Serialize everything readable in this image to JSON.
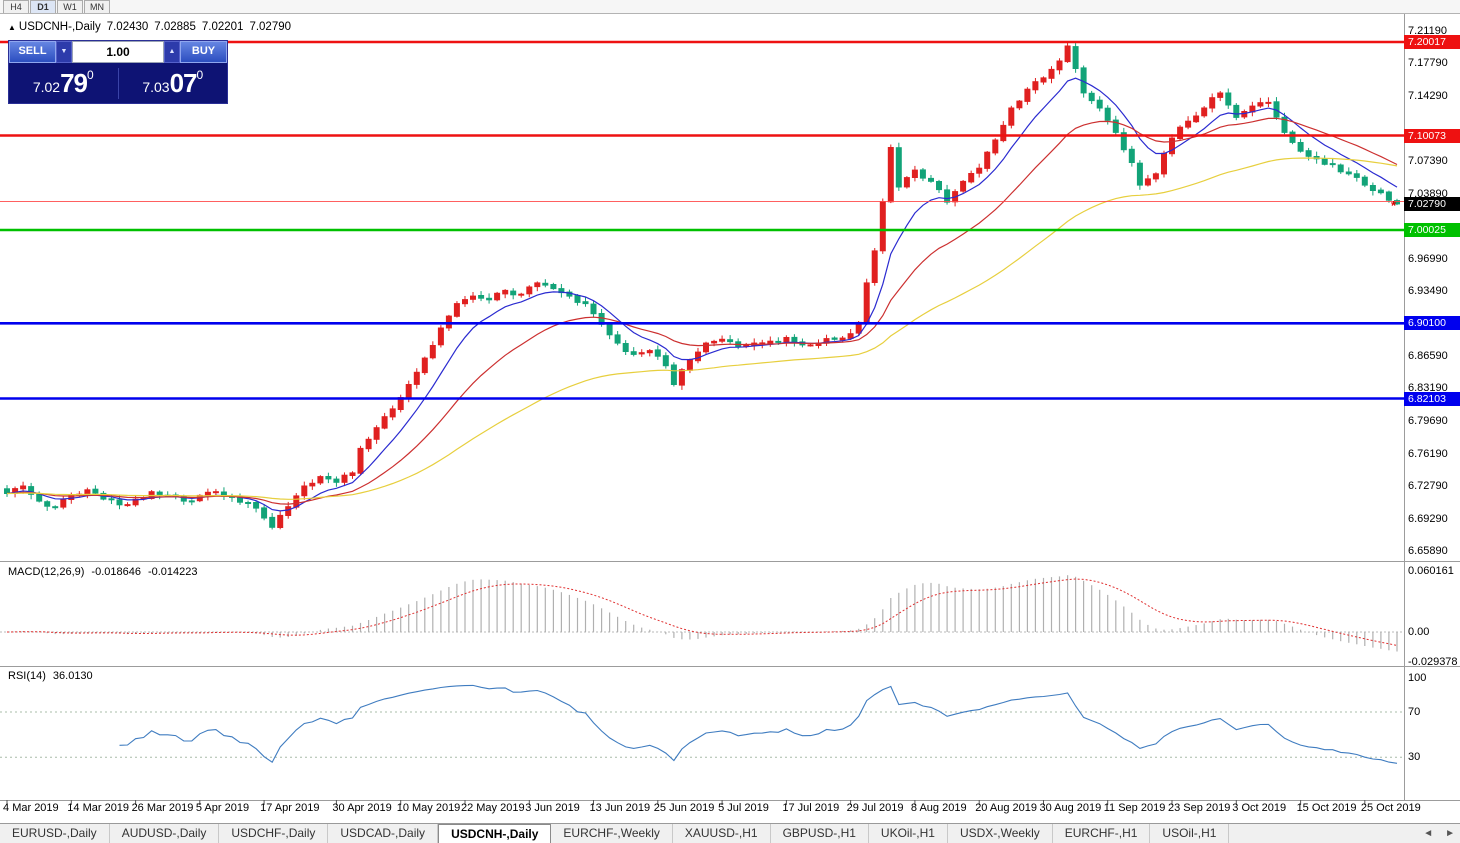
{
  "topbar": {
    "timeframes": [
      "H4",
      "D1",
      "W1",
      "MN"
    ],
    "active_index": 1
  },
  "chart": {
    "header": {
      "arrow": "▲",
      "symbol": "USDCNH-,Daily",
      "open": "7.02430",
      "high": "7.02885",
      "low": "7.02201",
      "close": "7.02790"
    },
    "trade_panel": {
      "sell_label": "SELL",
      "buy_label": "BUY",
      "volume": "1.00",
      "spin_up": "▲",
      "spin_down": "▼",
      "sell_price": {
        "prefix": "7.02",
        "pips": "79",
        "pipette": "0"
      },
      "buy_price": {
        "prefix": "7.03",
        "pips": "07",
        "pipette": "0"
      }
    }
  },
  "chart_data": {
    "type": "candlestick",
    "symbol": "USDCNH-",
    "timeframe": "Daily",
    "ohlc": {
      "open": 7.0243,
      "high": 7.02885,
      "low": 7.02201,
      "close": 7.0279
    },
    "bid": 7.0279,
    "ask": 7.0307,
    "candle_count": 174,
    "candle_colors": {
      "up": "#e02020",
      "down": "#12a378"
    },
    "price_anchors": [
      [
        0,
        6.72
      ],
      [
        2,
        6.728
      ],
      [
        4,
        6.712
      ],
      [
        6,
        6.706
      ],
      [
        8,
        6.718
      ],
      [
        10,
        6.724
      ],
      [
        12,
        6.714
      ],
      [
        14,
        6.708
      ],
      [
        16,
        6.714
      ],
      [
        18,
        6.722
      ],
      [
        20,
        6.718
      ],
      [
        22,
        6.712
      ],
      [
        24,
        6.718
      ],
      [
        26,
        6.722
      ],
      [
        28,
        6.716
      ],
      [
        30,
        6.71
      ],
      [
        32,
        6.694
      ],
      [
        33,
        6.684
      ],
      [
        35,
        6.706
      ],
      [
        37,
        6.728
      ],
      [
        39,
        6.738
      ],
      [
        41,
        6.732
      ],
      [
        43,
        6.742
      ],
      [
        44,
        6.768
      ],
      [
        46,
        6.79
      ],
      [
        48,
        6.81
      ],
      [
        50,
        6.836
      ],
      [
        52,
        6.864
      ],
      [
        54,
        6.896
      ],
      [
        56,
        6.922
      ],
      [
        58,
        6.93
      ],
      [
        60,
        6.926
      ],
      [
        62,
        6.936
      ],
      [
        64,
        6.932
      ],
      [
        66,
        6.944
      ],
      [
        68,
        6.938
      ],
      [
        70,
        6.93
      ],
      [
        72,
        6.922
      ],
      [
        74,
        6.9
      ],
      [
        76,
        6.88
      ],
      [
        78,
        6.868
      ],
      [
        80,
        6.872
      ],
      [
        82,
        6.856
      ],
      [
        83,
        6.836
      ],
      [
        85,
        6.862
      ],
      [
        87,
        6.88
      ],
      [
        89,
        6.884
      ],
      [
        91,
        6.876
      ],
      [
        93,
        6.88
      ],
      [
        95,
        6.882
      ],
      [
        97,
        6.886
      ],
      [
        99,
        6.878
      ],
      [
        101,
        6.88
      ],
      [
        103,
        6.884
      ],
      [
        105,
        6.89
      ],
      [
        106,
        6.902
      ],
      [
        107,
        6.944
      ],
      [
        108,
        6.978
      ],
      [
        109,
        7.03
      ],
      [
        110,
        7.088
      ],
      [
        111,
        7.046
      ],
      [
        112,
        7.056
      ],
      [
        113,
        7.064
      ],
      [
        115,
        7.052
      ],
      [
        117,
        7.03
      ],
      [
        119,
        7.052
      ],
      [
        121,
        7.066
      ],
      [
        123,
        7.096
      ],
      [
        125,
        7.13
      ],
      [
        127,
        7.15
      ],
      [
        129,
        7.162
      ],
      [
        131,
        7.18
      ],
      [
        132,
        7.196
      ],
      [
        133,
        7.172
      ],
      [
        134,
        7.146
      ],
      [
        136,
        7.13
      ],
      [
        138,
        7.104
      ],
      [
        140,
        7.072
      ],
      [
        141,
        7.048
      ],
      [
        143,
        7.06
      ],
      [
        145,
        7.098
      ],
      [
        147,
        7.116
      ],
      [
        149,
        7.13
      ],
      [
        151,
        7.146
      ],
      [
        153,
        7.12
      ],
      [
        155,
        7.132
      ],
      [
        157,
        7.136
      ],
      [
        159,
        7.104
      ],
      [
        161,
        7.084
      ],
      [
        163,
        7.076
      ],
      [
        165,
        7.07
      ],
      [
        167,
        7.06
      ],
      [
        169,
        7.048
      ],
      [
        171,
        7.04
      ],
      [
        173,
        7.028
      ]
    ],
    "moving_averages": [
      {
        "period": 8,
        "color": "#2b2bd0"
      },
      {
        "period": 21,
        "color": "#cc3030"
      },
      {
        "period": 55,
        "color": "#e7cf3e"
      }
    ],
    "levels": [
      {
        "value": 7.20017,
        "label": "7.20017",
        "color": "#ee1111"
      },
      {
        "value": 7.10073,
        "label": "7.10073",
        "color": "#ee1111"
      },
      {
        "value": 7.00025,
        "label": "7.00025",
        "color": "#00c000"
      },
      {
        "value": 6.901,
        "label": "6.90100",
        "color": "#0000ee"
      },
      {
        "value": 6.82103,
        "label": "6.82103",
        "color": "#0000ee"
      }
    ],
    "bid_label": {
      "value": 7.0279,
      "label": "7.02790",
      "bg": "#000000"
    },
    "ask_line": {
      "value": 7.0307,
      "color": "#ff4a4a"
    },
    "y_ticks": [
      "7.21190",
      "7.17790",
      "7.14290",
      "7.07390",
      "7.03890",
      "6.96990",
      "6.93490",
      "6.86590",
      "6.83190",
      "6.79690",
      "6.76190",
      "6.72790",
      "6.69290",
      "6.65890"
    ],
    "x_labels": [
      "4 Mar 2019",
      "14 Mar 2019",
      "26 Mar 2019",
      "5 Apr 2019",
      "17 Apr 2019",
      "30 Apr 2019",
      "10 May 2019",
      "22 May 2019",
      "3 Jun 2019",
      "13 Jun 2019",
      "25 Jun 2019",
      "5 Jul 2019",
      "17 Jul 2019",
      "29 Jul 2019",
      "8 Aug 2019",
      "20 Aug 2019",
      "30 Aug 2019",
      "11 Sep 2019",
      "23 Sep 2019",
      "3 Oct 2019",
      "15 Oct 2019",
      "25 Oct 2019"
    ],
    "x_label_indices": [
      0,
      8,
      16,
      24,
      32,
      41,
      49,
      57,
      65,
      73,
      81,
      89,
      97,
      105,
      113,
      121,
      129,
      137,
      145,
      153,
      161,
      169
    ],
    "macd": {
      "title": "MACD(12,26,9)",
      "fast": 12,
      "slow": 26,
      "signal": 9,
      "current_main": "-0.018646",
      "current_signal": "-0.014223",
      "axis_labels": [
        "0.060161",
        "0.00",
        "-0.029378"
      ],
      "hist_color": "#b0b0b0",
      "signal_color": "#e03030"
    },
    "rsi": {
      "title": "RSI(14)",
      "period": 14,
      "current": "36.0130",
      "axis_labels": [
        "100",
        "70",
        "30"
      ],
      "levels": [
        70,
        30
      ],
      "line_color": "#3f7cc0"
    }
  },
  "tabs": {
    "items": [
      "EURUSD-,Daily",
      "AUDUSD-,Daily",
      "USDCHF-,Daily",
      "USDCAD-,Daily",
      "USDCNH-,Daily",
      "EURCHF-,Weekly",
      "XAUUSD-,H1",
      "GBPUSD-,H1",
      "UKOil-,H1",
      "USDX-,Weekly",
      "EURCHF-,H1",
      "USOil-,H1"
    ],
    "active_index": 4,
    "scroll_left": "◄",
    "scroll_right": "►"
  }
}
